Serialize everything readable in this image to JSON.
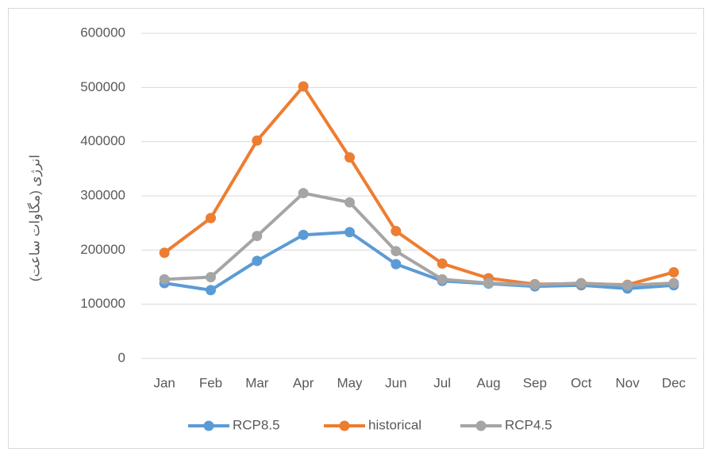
{
  "chart_data": {
    "type": "line",
    "y_label": "انرژی (مگاوات ساعت)",
    "categories": [
      "Jan",
      "Feb",
      "Mar",
      "Apr",
      "May",
      "Jun",
      "Jul",
      "Aug",
      "Sep",
      "Oct",
      "Nov",
      "Dec"
    ],
    "series": [
      {
        "name": "RCP8.5",
        "color": "#5b9bd5",
        "values": [
          139000,
          126000,
          180000,
          228000,
          233000,
          174000,
          143000,
          138000,
          133000,
          135000,
          129000,
          135000
        ]
      },
      {
        "name": "historical",
        "color": "#ed7d31",
        "values": [
          195000,
          259000,
          402000,
          502000,
          371000,
          235000,
          175000,
          148000,
          137000,
          138000,
          136000,
          159000
        ]
      },
      {
        "name": "RCP4.5",
        "color": "#a5a5a5",
        "values": [
          146000,
          150000,
          226000,
          305000,
          288000,
          198000,
          146000,
          139000,
          136000,
          139000,
          135000,
          139000
        ]
      }
    ],
    "ylim": [
      0,
      600000
    ],
    "yticks": [
      0,
      100000,
      200000,
      300000,
      400000,
      500000,
      600000
    ],
    "grid": true,
    "legend": "bottom"
  }
}
